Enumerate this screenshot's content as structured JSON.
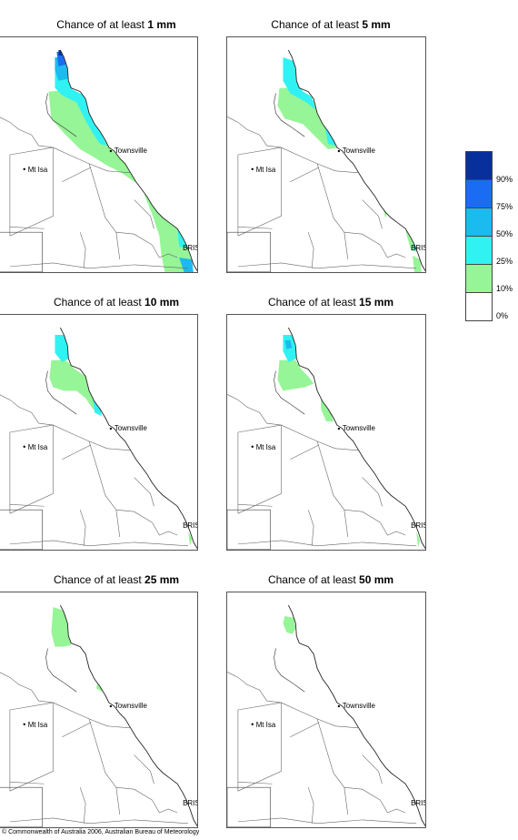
{
  "panels": [
    {
      "title_prefix": "Chance of at least ",
      "amount": "1 mm"
    },
    {
      "title_prefix": "Chance of at least ",
      "amount": "5 mm"
    },
    {
      "title_prefix": "Chance of at least ",
      "amount": "10 mm"
    },
    {
      "title_prefix": "Chance of at least ",
      "amount": "15 mm"
    },
    {
      "title_prefix": "Chance of at least ",
      "amount": "25 mm"
    },
    {
      "title_prefix": "Chance of at least ",
      "amount": "50 mm"
    }
  ],
  "places": {
    "townsville": "Townsville",
    "mt_isa": "Mt Isa",
    "brisbane": "BRIS"
  },
  "legend": {
    "labels": [
      "90%",
      "75%",
      "50%",
      "25%",
      "10%",
      "0%"
    ],
    "colors": [
      "#08309c",
      "#1a6df2",
      "#1cbbef",
      "#31f2f2",
      "#96f596",
      "#ffffff"
    ]
  },
  "footer": "© Commonwealth of Australia 2006, Australian Bureau of Meteorology"
}
